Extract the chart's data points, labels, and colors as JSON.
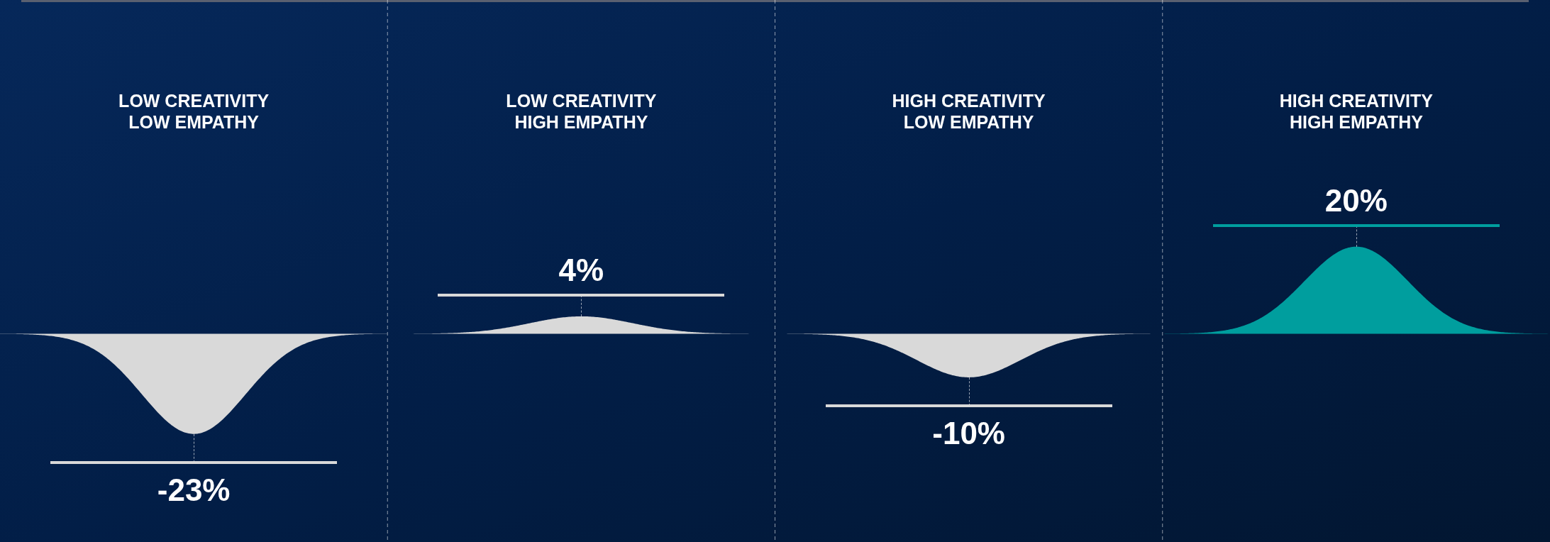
{
  "chart_data": {
    "type": "other",
    "categories": [
      "LOW CREATIVITY LOW EMPATHY",
      "LOW CREATIVITY HIGH EMPATHY",
      "HIGH CREATIVITY LOW EMPATHY",
      "HIGH CREATIVITY HIGH EMPATHY"
    ],
    "values": [
      -23,
      4,
      -10,
      20
    ],
    "colors": [
      "#d9d9d9",
      "#d9d9d9",
      "#d9d9d9",
      "#009e9e"
    ],
    "value_labels": [
      "-23%",
      "4%",
      "-10%",
      "20%"
    ]
  }
}
